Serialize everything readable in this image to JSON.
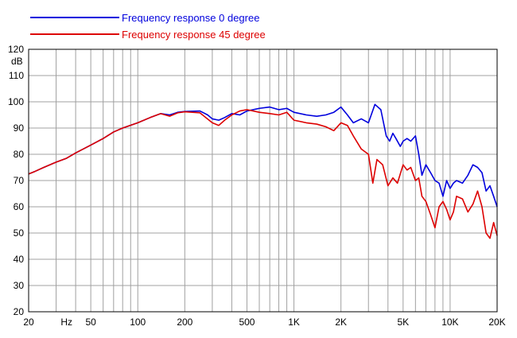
{
  "chart_data": {
    "type": "line",
    "x_scale": "log",
    "xlim": [
      20,
      20000
    ],
    "ylim": [
      20,
      120
    ],
    "grid": true,
    "legend_position": "top-left",
    "y_unit": "dB",
    "y_ticks": [
      20,
      30,
      40,
      50,
      60,
      70,
      80,
      90,
      100,
      110,
      120
    ],
    "x_tick_labels": [
      {
        "value": 20,
        "label": "20"
      },
      {
        "value": 35,
        "label": "Hz"
      },
      {
        "value": 50,
        "label": "50"
      },
      {
        "value": 100,
        "label": "100"
      },
      {
        "value": 200,
        "label": "200"
      },
      {
        "value": 500,
        "label": "500"
      },
      {
        "value": 1000,
        "label": "1K"
      },
      {
        "value": 2000,
        "label": "2K"
      },
      {
        "value": 5000,
        "label": "5K"
      },
      {
        "value": 10000,
        "label": "10K"
      },
      {
        "value": 20000,
        "label": "20K"
      }
    ],
    "series": [
      {
        "name": "Frequency response 0 degree",
        "color": "#0000dd",
        "points": [
          [
            20,
            72.5
          ],
          [
            22,
            73.5
          ],
          [
            25,
            75
          ],
          [
            30,
            77
          ],
          [
            35,
            78.5
          ],
          [
            40,
            80.5
          ],
          [
            50,
            83.5
          ],
          [
            60,
            86
          ],
          [
            70,
            88.5
          ],
          [
            80,
            90
          ],
          [
            100,
            92
          ],
          [
            120,
            94
          ],
          [
            140,
            95.5
          ],
          [
            160,
            95
          ],
          [
            180,
            96
          ],
          [
            200,
            96.3
          ],
          [
            250,
            96.5
          ],
          [
            280,
            95
          ],
          [
            300,
            93.5
          ],
          [
            330,
            93
          ],
          [
            360,
            94
          ],
          [
            400,
            95.5
          ],
          [
            450,
            95
          ],
          [
            500,
            96.5
          ],
          [
            600,
            97.5
          ],
          [
            700,
            98
          ],
          [
            800,
            97
          ],
          [
            900,
            97.5
          ],
          [
            1000,
            96
          ],
          [
            1200,
            95
          ],
          [
            1400,
            94.5
          ],
          [
            1600,
            95
          ],
          [
            1800,
            96
          ],
          [
            2000,
            98
          ],
          [
            2200,
            95
          ],
          [
            2400,
            92
          ],
          [
            2700,
            93.5
          ],
          [
            3000,
            92
          ],
          [
            3300,
            99
          ],
          [
            3600,
            97
          ],
          [
            3900,
            87
          ],
          [
            4100,
            85
          ],
          [
            4300,
            88
          ],
          [
            4500,
            86
          ],
          [
            4800,
            83
          ],
          [
            5000,
            85
          ],
          [
            5300,
            86
          ],
          [
            5600,
            85
          ],
          [
            6000,
            87
          ],
          [
            6300,
            80
          ],
          [
            6600,
            72
          ],
          [
            7000,
            76
          ],
          [
            7500,
            73
          ],
          [
            8000,
            70
          ],
          [
            8500,
            69
          ],
          [
            9000,
            64
          ],
          [
            9500,
            70
          ],
          [
            10000,
            67
          ],
          [
            10500,
            69
          ],
          [
            11000,
            70
          ],
          [
            12000,
            69
          ],
          [
            13000,
            72
          ],
          [
            14000,
            76
          ],
          [
            15000,
            75
          ],
          [
            16000,
            73
          ],
          [
            17000,
            66
          ],
          [
            18000,
            68
          ],
          [
            19000,
            64
          ],
          [
            20000,
            60
          ]
        ]
      },
      {
        "name": "Frequency response 45 degree",
        "color": "#dd0000",
        "points": [
          [
            20,
            72.5
          ],
          [
            22,
            73.5
          ],
          [
            25,
            75
          ],
          [
            30,
            77
          ],
          [
            35,
            78.5
          ],
          [
            40,
            80.5
          ],
          [
            50,
            83.5
          ],
          [
            60,
            86
          ],
          [
            70,
            88.5
          ],
          [
            80,
            90
          ],
          [
            100,
            92
          ],
          [
            120,
            94
          ],
          [
            140,
            95.5
          ],
          [
            160,
            94.5
          ],
          [
            180,
            95.8
          ],
          [
            200,
            96.2
          ],
          [
            250,
            95.8
          ],
          [
            300,
            92
          ],
          [
            330,
            91
          ],
          [
            360,
            93
          ],
          [
            400,
            95
          ],
          [
            450,
            96.5
          ],
          [
            500,
            97
          ],
          [
            600,
            96
          ],
          [
            700,
            95.5
          ],
          [
            800,
            95
          ],
          [
            900,
            96
          ],
          [
            1000,
            93
          ],
          [
            1200,
            92
          ],
          [
            1400,
            91.5
          ],
          [
            1600,
            90.5
          ],
          [
            1800,
            89
          ],
          [
            2000,
            92
          ],
          [
            2200,
            91
          ],
          [
            2400,
            87
          ],
          [
            2700,
            82
          ],
          [
            3000,
            80
          ],
          [
            3200,
            69
          ],
          [
            3400,
            78
          ],
          [
            3700,
            76
          ],
          [
            4000,
            68
          ],
          [
            4300,
            71
          ],
          [
            4600,
            69
          ],
          [
            5000,
            76
          ],
          [
            5300,
            74
          ],
          [
            5600,
            75
          ],
          [
            6000,
            70
          ],
          [
            6300,
            71
          ],
          [
            6600,
            64
          ],
          [
            7000,
            62
          ],
          [
            7500,
            57
          ],
          [
            8000,
            52
          ],
          [
            8500,
            60
          ],
          [
            9000,
            62
          ],
          [
            9500,
            59
          ],
          [
            10000,
            55
          ],
          [
            10500,
            58
          ],
          [
            11000,
            64
          ],
          [
            12000,
            63
          ],
          [
            13000,
            58
          ],
          [
            14000,
            61
          ],
          [
            15000,
            66
          ],
          [
            16000,
            60
          ],
          [
            17000,
            50
          ],
          [
            18000,
            48
          ],
          [
            19000,
            54
          ],
          [
            20000,
            49
          ]
        ]
      }
    ]
  }
}
